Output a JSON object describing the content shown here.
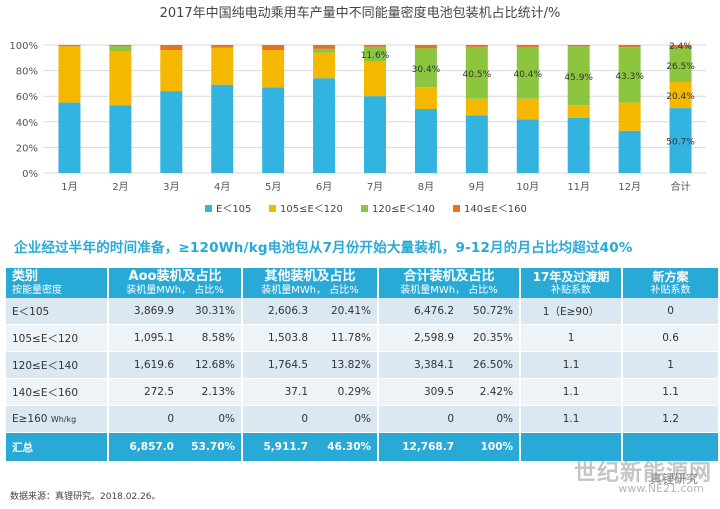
{
  "chart_data": {
    "type": "bar",
    "stacked": true,
    "title": "2017年中国纯电动乘用车产量中不同能量密度电池包装机占比统计/%",
    "categories": [
      "1月",
      "2月",
      "3月",
      "4月",
      "5月",
      "6月",
      "7月",
      "8月",
      "9月",
      "10月",
      "11月",
      "12月",
      "合计"
    ],
    "ylim": [
      0,
      100
    ],
    "yticks": [
      "0%",
      "20%",
      "40%",
      "60%",
      "80%",
      "100%"
    ],
    "grid": true,
    "legend_position": "bottom",
    "series": [
      {
        "name": "E＜105",
        "color": "#33b4e0",
        "values": [
          55,
          53,
          64,
          69,
          67,
          74,
          60,
          50,
          45,
          42,
          43,
          33,
          50.7
        ]
      },
      {
        "name": "105≤E＜120",
        "color": "#f5b800",
        "values": [
          44,
          42,
          32,
          29,
          29,
          20,
          27,
          17,
          13,
          16,
          10,
          22,
          20.4
        ]
      },
      {
        "name": "120≤E＜140",
        "color": "#8cc63f",
        "values": [
          0,
          4,
          0,
          0,
          0,
          3,
          11.6,
          30.4,
          40.5,
          40.4,
          45.9,
          43.3,
          26.5
        ]
      },
      {
        "name": "140≤E＜160",
        "color": "#e8731c",
        "values": [
          1,
          1,
          4,
          2,
          4,
          3,
          1.4,
          2.6,
          1.5,
          1.6,
          1.1,
          1.7,
          2.4
        ]
      }
    ],
    "data_labels": [
      {
        "category": "7月",
        "series": "120≤E＜140",
        "text": "11.6%"
      },
      {
        "category": "8月",
        "series": "120≤E＜140",
        "text": "30.4%"
      },
      {
        "category": "9月",
        "series": "120≤E＜140",
        "text": "40.5%"
      },
      {
        "category": "10月",
        "series": "120≤E＜140",
        "text": "40.4%"
      },
      {
        "category": "11月",
        "series": "120≤E＜140",
        "text": "45.9%"
      },
      {
        "category": "12月",
        "series": "120≤E＜140",
        "text": "43.3%"
      },
      {
        "category": "合计",
        "series": "140≤E＜160",
        "text": "2.4%"
      },
      {
        "category": "合计",
        "series": "120≤E＜140",
        "text": "26.5%"
      },
      {
        "category": "合计",
        "series": "105≤E＜120",
        "text": "20.4%"
      },
      {
        "category": "合计",
        "series": "E＜105",
        "text": "50.7%"
      }
    ]
  },
  "headline": "企业经过半年的时间准备，≥120Wh/kg电池包从7月份开始大量装机，9-12月的月占比均超过40%",
  "table": {
    "header": [
      {
        "title": "类别",
        "sub": "按能量密度"
      },
      {
        "title": "Aoo装机及占比",
        "sub": "装机量MWh，   占比%"
      },
      {
        "title": "其他装机及占比",
        "sub": "装机量MWh，   占比%"
      },
      {
        "title": "合计装机及占比",
        "sub": "装机量MWh，   占比%"
      },
      {
        "title": "17年及过渡期",
        "sub": "补贴系数"
      },
      {
        "title": "新方案",
        "sub": "补贴系数"
      }
    ],
    "rows": [
      {
        "cat": "E＜105",
        "unit": "",
        "aoo_mwh": "3,869.9",
        "aoo_pct": "30.31%",
        "oth_mwh": "2,606.3",
        "oth_pct": "20.41%",
        "tot_mwh": "6,476.2",
        "tot_pct": "50.72%",
        "coef17": "1（E≥90）",
        "coefnew": "0"
      },
      {
        "cat": "105≤E＜120",
        "unit": "",
        "aoo_mwh": "1,095.1",
        "aoo_pct": "8.58%",
        "oth_mwh": "1,503.8",
        "oth_pct": "11.78%",
        "tot_mwh": "2,598.9",
        "tot_pct": "20.35%",
        "coef17": "1",
        "coefnew": "0.6"
      },
      {
        "cat": "120≤E＜140",
        "unit": "",
        "aoo_mwh": "1,619.6",
        "aoo_pct": "12.68%",
        "oth_mwh": "1,764.5",
        "oth_pct": "13.82%",
        "tot_mwh": "3,384.1",
        "tot_pct": "26.50%",
        "coef17": "1.1",
        "coefnew": "1"
      },
      {
        "cat": "140≤E＜160",
        "unit": "",
        "aoo_mwh": "272.5",
        "aoo_pct": "2.13%",
        "oth_mwh": "37.1",
        "oth_pct": "0.29%",
        "tot_mwh": "309.5",
        "tot_pct": "2.42%",
        "coef17": "1.1",
        "coefnew": "1.1"
      },
      {
        "cat": "E≥160",
        "unit": "Wh/kg",
        "aoo_mwh": "0",
        "aoo_pct": "0%",
        "oth_mwh": "0",
        "oth_pct": "0%",
        "tot_mwh": "0",
        "tot_pct": "0%",
        "coef17": "1.1",
        "coefnew": "1.2"
      }
    ],
    "total": {
      "cat": "汇总",
      "aoo_mwh": "6,857.0",
      "aoo_pct": "53.70%",
      "oth_mwh": "5,911.7",
      "oth_pct": "46.30%",
      "tot_mwh": "12,768.7",
      "tot_pct": "100%"
    }
  },
  "footnote": "数据来源：真锂研究。2018.02.26。",
  "watermark": "世纪新能源网",
  "watermark_url": "www.NE21.com",
  "wechat": "真锂研究"
}
